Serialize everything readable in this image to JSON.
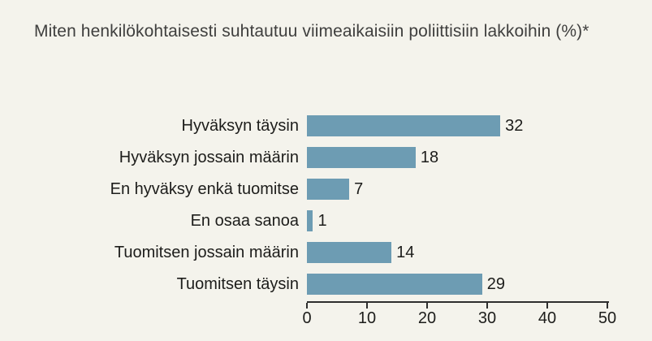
{
  "title": "Miten henkilökohtaisesti suhtautuu viimeaikaisiin poliittisiin lakkoihin (%)*",
  "colors": {
    "background": "#f4f3ec",
    "bar": "#6d9cb3",
    "title_text": "#3f3f3e",
    "label_text": "#1d1d1b",
    "axis": "#2e2e2e"
  },
  "chart_data": {
    "type": "bar",
    "orientation": "horizontal",
    "title": "Miten henkilökohtaisesti suhtautuu viimeaikaisiin poliittisiin lakkoihin (%)*",
    "categories": [
      "Hyväksyn täysin",
      "Hyväksyn jossain määrin",
      "En hyväksy enkä tuomitse",
      "En osaa sanoa",
      "Tuomitsen jossain määrin",
      "Tuomitsen täysin"
    ],
    "values": [
      32,
      18,
      7,
      1,
      14,
      29
    ],
    "value_labels_shown": true,
    "xlabel": "",
    "ylabel": "",
    "xlim": [
      0,
      50
    ],
    "xticks": [
      "0",
      "10",
      "20",
      "30",
      "40",
      "50"
    ],
    "grid": false,
    "legend": false
  }
}
